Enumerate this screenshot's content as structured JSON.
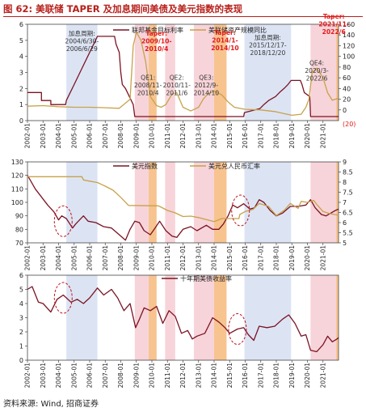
{
  "figure": {
    "title": "图 62: 美联储 TAPER 及加息期间美债及美元指数的表现",
    "source": "资料来源: Wind, 招商证券"
  },
  "x_axis": {
    "start": 2002.0,
    "end": 2022.0,
    "ticks": [
      "2002-01",
      "2003-01",
      "2004-01",
      "2005-01",
      "2006-01",
      "2007-01",
      "2008-01",
      "2009-01",
      "2010-01",
      "2011-01",
      "2012-01",
      "2013-01",
      "2014-01",
      "2015-01",
      "2016-01",
      "2017-01",
      "2018-01",
      "2019-01",
      "2020-01",
      "2021-01"
    ]
  },
  "colors": {
    "fed_rate": "#7b1323",
    "fed_assets": "#c7a24a",
    "dxy": "#7b1323",
    "usdcny": "#c7a24a",
    "ust10y": "#7b1323",
    "hike_band": "#d6dff2",
    "qe_band": "#f6cdd2",
    "taper_band": "#f7c28b",
    "taper_text": "#e21b1b",
    "neg_label": "#e21b1b",
    "circle": "#c0141c"
  },
  "bands": [
    {
      "kind": "hike",
      "start": 2004.5,
      "end": 2006.5
    },
    {
      "kind": "qe",
      "start": 2008.9,
      "end": 2010.3
    },
    {
      "kind": "taper",
      "start": 2009.8,
      "end": 2010.3
    },
    {
      "kind": "qe",
      "start": 2010.85,
      "end": 2011.5
    },
    {
      "kind": "qe",
      "start": 2012.7,
      "end": 2014.8
    },
    {
      "kind": "taper",
      "start": 2014.0,
      "end": 2014.8
    },
    {
      "kind": "hike",
      "start": 2015.95,
      "end": 2018.95
    },
    {
      "kind": "qe",
      "start": 2020.2,
      "end": 2022.0
    },
    {
      "kind": "taper",
      "start": 2021.85,
      "end": 2022.0
    }
  ],
  "circles": [
    {
      "panel": 1,
      "x": 2004.3,
      "y": 86
    },
    {
      "panel": 1,
      "x": 2015.7,
      "y": 94
    },
    {
      "panel": 2,
      "x": 2004.3,
      "y": 4.4
    },
    {
      "panel": 2,
      "x": 2015.5,
      "y": 2.2
    }
  ],
  "chart_data": [
    {
      "type": "line",
      "title": "",
      "legend": {
        "placement": "top"
      },
      "y_left": {
        "ylim": [
          0,
          6
        ],
        "ticks": [
          0,
          1,
          2,
          3,
          4,
          5,
          6
        ]
      },
      "y_right": {
        "ylim": [
          -20,
          160
        ],
        "ticks": [
          "0",
          "20",
          "40",
          "60",
          "80",
          "100",
          "120",
          "140",
          "160"
        ],
        "neg_label": "(20)"
      },
      "series": [
        {
          "name": "联邦基金目标利率",
          "axis": "left",
          "x": [
            2002.0,
            2002.9,
            2002.9,
            2003.5,
            2003.5,
            2004.45,
            2004.5,
            2005.0,
            2005.5,
            2006.0,
            2006.5,
            2007.6,
            2007.7,
            2007.9,
            2008.0,
            2008.1,
            2008.3,
            2008.8,
            2008.9,
            2008.95,
            2015.9,
            2015.95,
            2016.95,
            2017.2,
            2017.5,
            2017.95,
            2018.2,
            2018.5,
            2018.75,
            2018.95,
            2019.55,
            2019.65,
            2019.8,
            2020.15,
            2020.2,
            2022.0
          ],
          "values": [
            1.75,
            1.75,
            1.25,
            1.25,
            1.0,
            1.0,
            1.25,
            2.25,
            3.25,
            4.25,
            5.25,
            5.25,
            4.75,
            4.25,
            3.0,
            2.25,
            2.0,
            1.0,
            0.25,
            0.25,
            0.25,
            0.5,
            0.75,
            1.0,
            1.25,
            1.5,
            1.75,
            2.0,
            2.25,
            2.5,
            2.5,
            2.25,
            1.75,
            1.5,
            0.25,
            0.25
          ]
        },
        {
          "name": "美联储资产规模同比",
          "axis": "right",
          "x": [
            2002.0,
            2003.0,
            2004.0,
            2005.0,
            2006.0,
            2007.0,
            2007.9,
            2008.6,
            2008.8,
            2009.0,
            2009.3,
            2009.6,
            2009.9,
            2010.3,
            2010.6,
            2010.9,
            2011.3,
            2011.6,
            2012.0,
            2012.5,
            2013.0,
            2013.3,
            2013.6,
            2014.0,
            2014.5,
            2014.9,
            2015.3,
            2016.0,
            2017.0,
            2017.9,
            2018.5,
            2019.0,
            2019.6,
            2019.9,
            2020.1,
            2020.3,
            2020.6,
            2021.0,
            2021.3,
            2021.6,
            2022.0
          ],
          "values": [
            7,
            8,
            6,
            5,
            5,
            4,
            3,
            20,
            120,
            145,
            130,
            90,
            25,
            8,
            5,
            10,
            30,
            32,
            5,
            -2,
            5,
            20,
            30,
            35,
            28,
            15,
            5,
            1,
            0,
            -3,
            -7,
            -10,
            -8,
            5,
            20,
            70,
            78,
            60,
            32,
            18,
            22
          ]
        }
      ],
      "annotations": [
        {
          "text": [
            "加息周期:",
            "2004/6/30-",
            "2006/6/29"
          ],
          "x": 2005.5,
          "y": 5.3,
          "color": "#333333"
        },
        {
          "text": [
            "Taper:",
            "2009/10-",
            "2010/4"
          ],
          "x": 2010.3,
          "y": 5.3,
          "color": "#e21b1b",
          "bold": true
        },
        {
          "text": [
            "Taper:",
            "2014/1-",
            "2014/10"
          ],
          "x": 2014.7,
          "y": 5.35,
          "color": "#e21b1b",
          "bold": true
        },
        {
          "text": [
            "加息周期:",
            "2015/12/17-",
            "2018/12/20"
          ],
          "x": 2017.45,
          "y": 5.05,
          "color": "#333333"
        },
        {
          "text": [
            "Taper:",
            "2021/11-",
            "2022/6"
          ],
          "x": 2021.7,
          "y": 6.35,
          "color": "#e21b1b",
          "bold": true
        },
        {
          "text": [
            "QE1:",
            "2008/11-",
            "2010/4"
          ],
          "x": 2009.75,
          "y": 2.55,
          "color": "#333333"
        },
        {
          "text": [
            "QE2:",
            "2010/11-",
            "2011/6"
          ],
          "x": 2011.6,
          "y": 2.55,
          "color": "#333333"
        },
        {
          "text": [
            "QE3:",
            "2012/9-",
            "2014/10"
          ],
          "x": 2013.5,
          "y": 2.55,
          "color": "#333333"
        },
        {
          "text": [
            "QE4:",
            "2020/3-",
            "2022/6"
          ],
          "x": 2020.6,
          "y": 3.45,
          "color": "#333333"
        }
      ]
    },
    {
      "type": "line",
      "title": "",
      "legend": {
        "placement": "top"
      },
      "y_left": {
        "ylim": [
          70,
          130
        ],
        "ticks": [
          70,
          80,
          90,
          100,
          110,
          120,
          130
        ]
      },
      "y_right": {
        "ylim": [
          5,
          9
        ],
        "ticks": [
          5,
          5.5,
          6,
          6.5,
          7,
          7.5,
          8,
          8.5,
          9
        ]
      },
      "series": [
        {
          "name": "美元指数",
          "axis": "left",
          "x": [
            2002.0,
            2002.2,
            2002.5,
            2002.9,
            2003.3,
            2003.7,
            2004.0,
            2004.2,
            2004.5,
            2004.9,
            2005.1,
            2005.6,
            2005.9,
            2006.4,
            2006.9,
            2007.4,
            2007.9,
            2008.3,
            2008.6,
            2008.9,
            2009.2,
            2009.5,
            2009.9,
            2010.2,
            2010.5,
            2010.9,
            2011.3,
            2011.6,
            2012.0,
            2012.5,
            2012.9,
            2013.5,
            2013.9,
            2014.3,
            2014.6,
            2014.9,
            2015.2,
            2015.5,
            2015.9,
            2016.3,
            2016.6,
            2016.9,
            2017.2,
            2017.6,
            2018.0,
            2018.4,
            2018.9,
            2019.4,
            2019.9,
            2020.2,
            2020.5,
            2020.9,
            2021.2,
            2021.5,
            2021.8,
            2022.0
          ],
          "values": [
            120,
            116,
            110,
            104,
            98,
            93,
            87,
            90,
            88,
            81,
            84,
            90,
            86,
            85,
            82,
            81,
            76,
            72,
            80,
            86,
            85,
            79,
            76,
            81,
            86,
            79,
            75,
            74,
            80,
            82,
            79,
            83,
            80,
            80,
            84,
            90,
            98,
            96,
            99,
            95,
            96,
            102,
            100,
            94,
            90,
            92,
            97,
            97,
            98,
            102,
            96,
            91,
            90,
            92,
            94,
            95
          ]
        },
        {
          "name": "美元兑人民币汇率",
          "axis": "right",
          "x": [
            2002.0,
            2004.0,
            2005.5,
            2005.6,
            2006.0,
            2006.5,
            2007.0,
            2007.5,
            2008.0,
            2008.5,
            2010.4,
            2010.5,
            2011.0,
            2011.5,
            2012.0,
            2012.5,
            2013.0,
            2013.5,
            2014.0,
            2014.5,
            2015.0,
            2015.6,
            2015.65,
            2016.0,
            2016.5,
            2016.9,
            2017.5,
            2018.0,
            2018.5,
            2018.9,
            2019.4,
            2019.6,
            2020.0,
            2020.4,
            2020.6,
            2021.0,
            2021.4,
            2021.9,
            2022.0
          ],
          "values": [
            8.27,
            8.27,
            8.27,
            8.11,
            8.05,
            7.98,
            7.8,
            7.6,
            7.25,
            6.85,
            6.83,
            6.8,
            6.6,
            6.48,
            6.3,
            6.32,
            6.25,
            6.15,
            6.05,
            6.2,
            6.2,
            6.2,
            6.4,
            6.55,
            6.65,
            6.95,
            6.8,
            6.35,
            6.6,
            6.95,
            6.7,
            7.05,
            7.0,
            7.1,
            6.9,
            6.55,
            6.45,
            6.38,
            6.36
          ]
        }
      ]
    },
    {
      "type": "line",
      "title": "",
      "legend": {
        "placement": "top"
      },
      "y_left": {
        "ylim": [
          0,
          6
        ],
        "ticks": [
          0,
          1,
          2,
          3,
          4,
          5,
          6
        ]
      },
      "series": [
        {
          "name": "十年期美债收益率",
          "axis": "left",
          "x": [
            2002.0,
            2002.3,
            2002.7,
            2003.0,
            2003.5,
            2003.9,
            2004.3,
            2004.8,
            2005.2,
            2005.6,
            2006.0,
            2006.5,
            2006.9,
            2007.4,
            2007.8,
            2008.2,
            2008.6,
            2008.95,
            2009.2,
            2009.5,
            2009.9,
            2010.3,
            2010.7,
            2011.1,
            2011.5,
            2011.9,
            2012.3,
            2012.6,
            2012.9,
            2013.4,
            2013.9,
            2014.3,
            2014.7,
            2015.0,
            2015.5,
            2015.9,
            2016.2,
            2016.55,
            2016.9,
            2017.4,
            2017.9,
            2018.4,
            2018.8,
            2019.2,
            2019.6,
            2019.9,
            2020.2,
            2020.6,
            2021.0,
            2021.3,
            2021.6,
            2021.9,
            2022.0
          ],
          "values": [
            5.0,
            5.2,
            4.1,
            4.0,
            3.4,
            4.3,
            4.6,
            4.1,
            4.3,
            4.0,
            4.4,
            5.1,
            4.6,
            5.0,
            4.4,
            3.5,
            4.0,
            2.3,
            2.9,
            3.7,
            3.5,
            3.8,
            2.6,
            3.5,
            3.1,
            1.9,
            2.1,
            1.5,
            1.7,
            1.9,
            3.0,
            2.7,
            2.3,
            1.9,
            2.2,
            2.3,
            1.8,
            1.4,
            2.4,
            2.3,
            2.4,
            2.9,
            3.2,
            2.6,
            1.7,
            1.8,
            0.7,
            0.6,
            1.1,
            1.7,
            1.3,
            1.5,
            1.6
          ]
        }
      ]
    }
  ]
}
